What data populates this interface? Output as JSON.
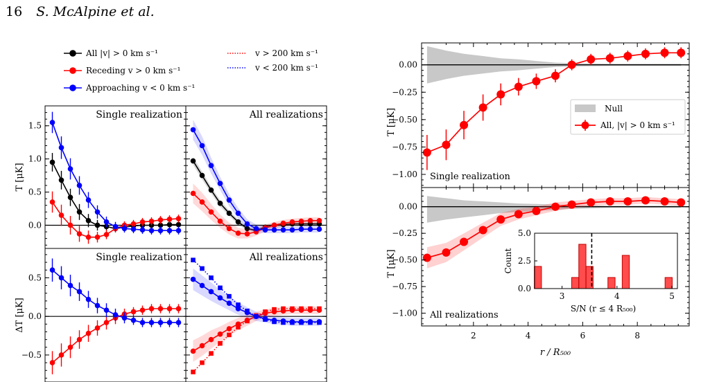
{
  "header": {
    "page_number": "16",
    "authors": "S. McAlpine et al."
  },
  "colors": {
    "all": "#000000",
    "receding": "#ff0000",
    "approaching": "#0000ff",
    "null_band": "#c8c8c8"
  },
  "left_legend": [
    {
      "label": "All |v| > 0 km s⁻¹",
      "color": "#000000",
      "style": "marker-line"
    },
    {
      "label": "Receding v > 0 km s⁻¹",
      "color": "#ff0000",
      "style": "marker-line"
    },
    {
      "label": "Approaching v < 0 km s⁻¹",
      "color": "#0000ff",
      "style": "marker-line"
    },
    {
      "label": "v > 200 km s⁻¹",
      "color": "#ff0000",
      "style": "dotted"
    },
    {
      "label": "v < 200 km s⁻¹",
      "color": "#0000ff",
      "style": "dotted"
    }
  ],
  "chart_data": [
    {
      "type": "line",
      "panel": "left-top-single",
      "title": "Single realization",
      "ylabel": "T [μK]",
      "ylim": [
        -0.35,
        1.8
      ],
      "yticks": [
        0.0,
        0.5,
        1.0,
        1.5
      ],
      "ytick_labels": [
        "0.0",
        "0.5",
        "1.0",
        "1.5"
      ],
      "x": [
        1,
        2,
        3,
        4,
        5,
        6,
        7,
        8,
        9,
        10,
        11,
        12,
        13,
        14,
        15
      ],
      "series": [
        {
          "name": "All |v| > 0 km s⁻¹",
          "color": "#000000",
          "values": [
            0.95,
            0.68,
            0.42,
            0.2,
            0.07,
            0.0,
            -0.02,
            -0.05,
            -0.03,
            -0.01,
            0.0,
            0.0,
            0.0,
            0.01,
            0.01
          ],
          "errors": [
            0.14,
            0.14,
            0.13,
            0.12,
            0.1,
            0.08,
            0.06,
            0.05,
            0.05,
            0.05,
            0.04,
            0.04,
            0.04,
            0.04,
            0.04
          ]
        },
        {
          "name": "Receding v > 0 km s⁻¹",
          "color": "#ff0000",
          "values": [
            0.35,
            0.15,
            0.0,
            -0.13,
            -0.18,
            -0.18,
            -0.14,
            -0.05,
            0.0,
            0.02,
            0.05,
            0.06,
            0.08,
            0.09,
            0.1
          ],
          "errors": [
            0.16,
            0.16,
            0.14,
            0.12,
            0.1,
            0.08,
            0.07,
            0.06,
            0.06,
            0.06,
            0.06,
            0.06,
            0.06,
            0.06,
            0.06
          ]
        },
        {
          "name": "Approaching v < 0 km s⁻¹",
          "color": "#0000ff",
          "values": [
            1.55,
            1.17,
            0.85,
            0.6,
            0.38,
            0.2,
            0.05,
            -0.02,
            -0.05,
            -0.06,
            -0.07,
            -0.08,
            -0.08,
            -0.08,
            -0.08
          ],
          "errors": [
            0.16,
            0.17,
            0.16,
            0.14,
            0.12,
            0.1,
            0.08,
            0.07,
            0.06,
            0.06,
            0.06,
            0.06,
            0.06,
            0.06,
            0.06
          ]
        }
      ]
    },
    {
      "type": "line",
      "panel": "left-top-all",
      "title": "All realizations",
      "ylim": [
        -0.35,
        1.8
      ],
      "x": [
        1,
        2,
        3,
        4,
        5,
        6,
        7,
        8,
        9,
        10,
        11,
        12,
        13,
        14,
        15
      ],
      "series": [
        {
          "name": "All |v| > 0 km s⁻¹",
          "color": "#000000",
          "values": [
            0.97,
            0.75,
            0.53,
            0.33,
            0.18,
            0.05,
            -0.05,
            -0.08,
            -0.03,
            0.0,
            0.01,
            0.02,
            0.02,
            0.02,
            0.02
          ],
          "band": [
            0.06,
            0.06,
            0.05,
            0.05,
            0.04,
            0.04,
            0.03,
            0.03,
            0.03,
            0.03,
            0.03,
            0.03,
            0.03,
            0.03,
            0.03
          ]
        },
        {
          "name": "Receding v > 0 km s⁻¹",
          "color": "#ff0000",
          "values": [
            0.48,
            0.35,
            0.2,
            0.06,
            -0.05,
            -0.12,
            -0.13,
            -0.1,
            -0.04,
            0.0,
            0.03,
            0.05,
            0.06,
            0.07,
            0.07
          ],
          "band": [
            0.15,
            0.14,
            0.12,
            0.1,
            0.09,
            0.08,
            0.07,
            0.06,
            0.05,
            0.05,
            0.05,
            0.05,
            0.05,
            0.05,
            0.05
          ]
        },
        {
          "name": "Approaching v < 0 km s⁻¹",
          "color": "#0000ff",
          "values": [
            1.44,
            1.2,
            0.9,
            0.63,
            0.38,
            0.18,
            0.02,
            -0.05,
            -0.07,
            -0.07,
            -0.07,
            -0.07,
            -0.06,
            -0.06,
            -0.06
          ],
          "band": [
            0.15,
            0.14,
            0.12,
            0.1,
            0.09,
            0.08,
            0.07,
            0.06,
            0.05,
            0.05,
            0.05,
            0.05,
            0.05,
            0.05,
            0.05
          ]
        }
      ]
    },
    {
      "type": "line",
      "panel": "left-bottom-single",
      "title": "Single realization",
      "ylabel": "ΔT [μK]",
      "ylim": [
        -0.85,
        0.88
      ],
      "yticks": [
        -0.5,
        0.0,
        0.5
      ],
      "ytick_labels": [
        "−0.5",
        "0.0",
        "0.5"
      ],
      "x": [
        1,
        2,
        3,
        4,
        5,
        6,
        7,
        8,
        9,
        10,
        11,
        12,
        13,
        14,
        15
      ],
      "series": [
        {
          "name": "Receding v > 0 km s⁻¹",
          "color": "#ff0000",
          "values": [
            -0.6,
            -0.5,
            -0.4,
            -0.3,
            -0.22,
            -0.15,
            -0.08,
            -0.02,
            0.03,
            0.06,
            0.08,
            0.1,
            0.1,
            0.1,
            0.1
          ],
          "errors": [
            0.15,
            0.15,
            0.14,
            0.12,
            0.11,
            0.1,
            0.09,
            0.08,
            0.07,
            0.06,
            0.06,
            0.06,
            0.06,
            0.06,
            0.06
          ]
        },
        {
          "name": "Approaching v < 0 km s⁻¹",
          "color": "#0000ff",
          "values": [
            0.6,
            0.5,
            0.4,
            0.32,
            0.22,
            0.14,
            0.08,
            0.02,
            -0.02,
            -0.05,
            -0.08,
            -0.08,
            -0.08,
            -0.08,
            -0.08
          ],
          "errors": [
            0.15,
            0.15,
            0.14,
            0.12,
            0.11,
            0.1,
            0.09,
            0.08,
            0.07,
            0.06,
            0.06,
            0.06,
            0.06,
            0.06,
            0.06
          ]
        }
      ]
    },
    {
      "type": "line",
      "panel": "left-bottom-all",
      "title": "All realizations",
      "ylim": [
        -0.85,
        0.88
      ],
      "x": [
        1,
        2,
        3,
        4,
        5,
        6,
        7,
        8,
        9,
        10,
        11,
        12,
        13,
        14,
        15
      ],
      "series": [
        {
          "name": "Receding v > 0 km s⁻¹",
          "color": "#ff0000",
          "marker": "circle",
          "values": [
            -0.45,
            -0.38,
            -0.3,
            -0.23,
            -0.16,
            -0.1,
            -0.05,
            0.0,
            0.04,
            0.06,
            0.07,
            0.08,
            0.08,
            0.08,
            0.08
          ],
          "band": [
            0.14,
            0.13,
            0.12,
            0.1,
            0.09,
            0.08,
            0.07,
            0.06,
            0.05,
            0.05,
            0.05,
            0.05,
            0.05,
            0.05,
            0.05
          ]
        },
        {
          "name": "Approaching v < 0 km s⁻¹",
          "color": "#0000ff",
          "marker": "circle",
          "values": [
            0.48,
            0.4,
            0.32,
            0.24,
            0.17,
            0.1,
            0.05,
            0.0,
            -0.03,
            -0.05,
            -0.06,
            -0.07,
            -0.07,
            -0.07,
            -0.07
          ],
          "band": [
            0.14,
            0.13,
            0.12,
            0.1,
            0.09,
            0.08,
            0.07,
            0.06,
            0.05,
            0.05,
            0.05,
            0.05,
            0.05,
            0.05,
            0.05
          ]
        },
        {
          "name": "v > 200 km s⁻¹",
          "color": "#ff0000",
          "marker": "square",
          "dotted": true,
          "values": [
            -0.72,
            -0.6,
            -0.48,
            -0.35,
            -0.24,
            -0.14,
            -0.06,
            0.01,
            0.06,
            0.09,
            0.1,
            0.1,
            0.1,
            0.1,
            0.1
          ]
        },
        {
          "name": "v < 200 km s⁻¹",
          "color": "#0000ff",
          "marker": "square",
          "dotted": true,
          "values": [
            0.73,
            0.62,
            0.5,
            0.37,
            0.26,
            0.15,
            0.07,
            0.0,
            -0.04,
            -0.07,
            -0.08,
            -0.08,
            -0.08,
            -0.08,
            -0.08
          ]
        }
      ]
    },
    {
      "type": "line",
      "panel": "right-top",
      "xlabel": "",
      "ylabel": "T [μK]",
      "xlim": [
        0.1,
        9.9
      ],
      "ylim": [
        -1.12,
        0.2
      ],
      "yticks": [
        -1.0,
        -0.75,
        -0.5,
        -0.25,
        0.0
      ],
      "ytick_labels": [
        "−1.00",
        "−0.75",
        "−0.50",
        "−0.25",
        "0.00"
      ],
      "annotation": "Single realization",
      "legend": {
        "location": "center-right",
        "entries": [
          "Null",
          "All, |v| > 0 km s⁻¹"
        ]
      },
      "null_band": {
        "x": [
          0.3,
          1.0,
          1.65,
          2.35,
          3.0,
          3.65,
          4.3,
          5.0,
          5.6,
          6.3,
          7.0,
          7.65,
          8.3,
          9.0,
          9.6
        ],
        "upper": [
          0.17,
          0.13,
          0.1,
          0.08,
          0.06,
          0.05,
          0.035,
          0.02,
          0.015,
          0.012,
          0.01,
          0.01,
          0.01,
          0.01,
          0.01
        ],
        "lower": [
          -0.17,
          -0.13,
          -0.1,
          -0.08,
          -0.06,
          -0.05,
          -0.035,
          -0.02,
          -0.015,
          -0.012,
          -0.01,
          -0.01,
          -0.01,
          -0.01,
          -0.01
        ]
      },
      "series": [
        {
          "name": "All, |v| > 0 km s⁻¹",
          "color": "#ff0000",
          "x": [
            0.3,
            1.0,
            1.65,
            2.35,
            3.0,
            3.65,
            4.3,
            5.0,
            5.6,
            6.3,
            7.0,
            7.65,
            8.3,
            9.0,
            9.6
          ],
          "values": [
            -0.8,
            -0.73,
            -0.55,
            -0.39,
            -0.27,
            -0.2,
            -0.15,
            -0.1,
            0.0,
            0.05,
            0.06,
            0.08,
            0.1,
            0.11,
            0.11
          ],
          "errors": [
            0.16,
            0.14,
            0.13,
            0.12,
            0.1,
            0.08,
            0.07,
            0.06,
            0.05,
            0.05,
            0.05,
            0.05,
            0.05,
            0.05,
            0.05
          ]
        }
      ]
    },
    {
      "type": "line",
      "panel": "right-bottom",
      "xlabel": "r / R₅₀₀",
      "ylabel": "T [μK]",
      "xlim": [
        0.1,
        9.9
      ],
      "ylim": [
        -1.12,
        0.18
      ],
      "yticks": [
        -1.0,
        -0.75,
        -0.5,
        -0.25,
        0.0
      ],
      "ytick_labels": [
        "−1.00",
        "−0.75",
        "−0.50",
        "−0.25",
        "0.00"
      ],
      "xticks": [
        2,
        4,
        6,
        8
      ],
      "xtick_labels": [
        "2",
        "4",
        "6",
        "8"
      ],
      "annotation": "All realizations",
      "null_band": {
        "x": [
          0.3,
          1.0,
          1.65,
          2.35,
          3.0,
          3.65,
          4.3,
          5.0,
          5.6,
          6.3,
          7.0,
          7.65,
          8.3,
          9.0,
          9.6
        ],
        "upper": [
          0.1,
          0.08,
          0.06,
          0.05,
          0.04,
          0.03,
          0.025,
          0.02,
          0.015,
          0.012,
          0.01,
          0.01,
          0.01,
          0.01,
          0.01
        ],
        "lower": [
          -0.15,
          -0.12,
          -0.1,
          -0.08,
          -0.06,
          -0.05,
          -0.04,
          -0.03,
          -0.02,
          -0.015,
          -0.01,
          -0.01,
          -0.01,
          -0.01,
          -0.01
        ]
      },
      "series": [
        {
          "name": "All, |v| > 0 km s⁻¹",
          "color": "#ff0000",
          "x": [
            0.3,
            1.0,
            1.65,
            2.35,
            3.0,
            3.65,
            4.3,
            5.0,
            5.6,
            6.3,
            7.0,
            7.65,
            8.3,
            9.0,
            9.6
          ],
          "values": [
            -0.48,
            -0.43,
            -0.33,
            -0.22,
            -0.12,
            -0.07,
            -0.04,
            0.0,
            0.02,
            0.04,
            0.05,
            0.05,
            0.06,
            0.05,
            0.04
          ],
          "band": [
            0.1,
            0.09,
            0.08,
            0.07,
            0.06,
            0.05,
            0.04,
            0.04,
            0.035,
            0.03,
            0.03,
            0.03,
            0.03,
            0.03,
            0.03
          ]
        }
      ]
    },
    {
      "type": "bar",
      "panel": "inset-histogram",
      "xlabel": "S/N (r ≤ 4 R₅₀₀)",
      "ylabel": "Count",
      "xlim": [
        2.5,
        5.1
      ],
      "ylim": [
        0,
        5.0
      ],
      "yticks": [
        0.0,
        2.5,
        5.0
      ],
      "ytick_labels": [
        "0.0",
        "2.5",
        "5.0"
      ],
      "xticks": [
        3,
        4,
        5
      ],
      "xtick_labels": [
        "3",
        "4",
        "5"
      ],
      "bin_width": 0.13,
      "bins": [
        2.56,
        3.24,
        3.37,
        3.5,
        3.9,
        4.16,
        4.94
      ],
      "values": [
        2,
        1,
        4,
        2,
        1,
        3,
        1
      ],
      "vline": 3.54
    }
  ]
}
